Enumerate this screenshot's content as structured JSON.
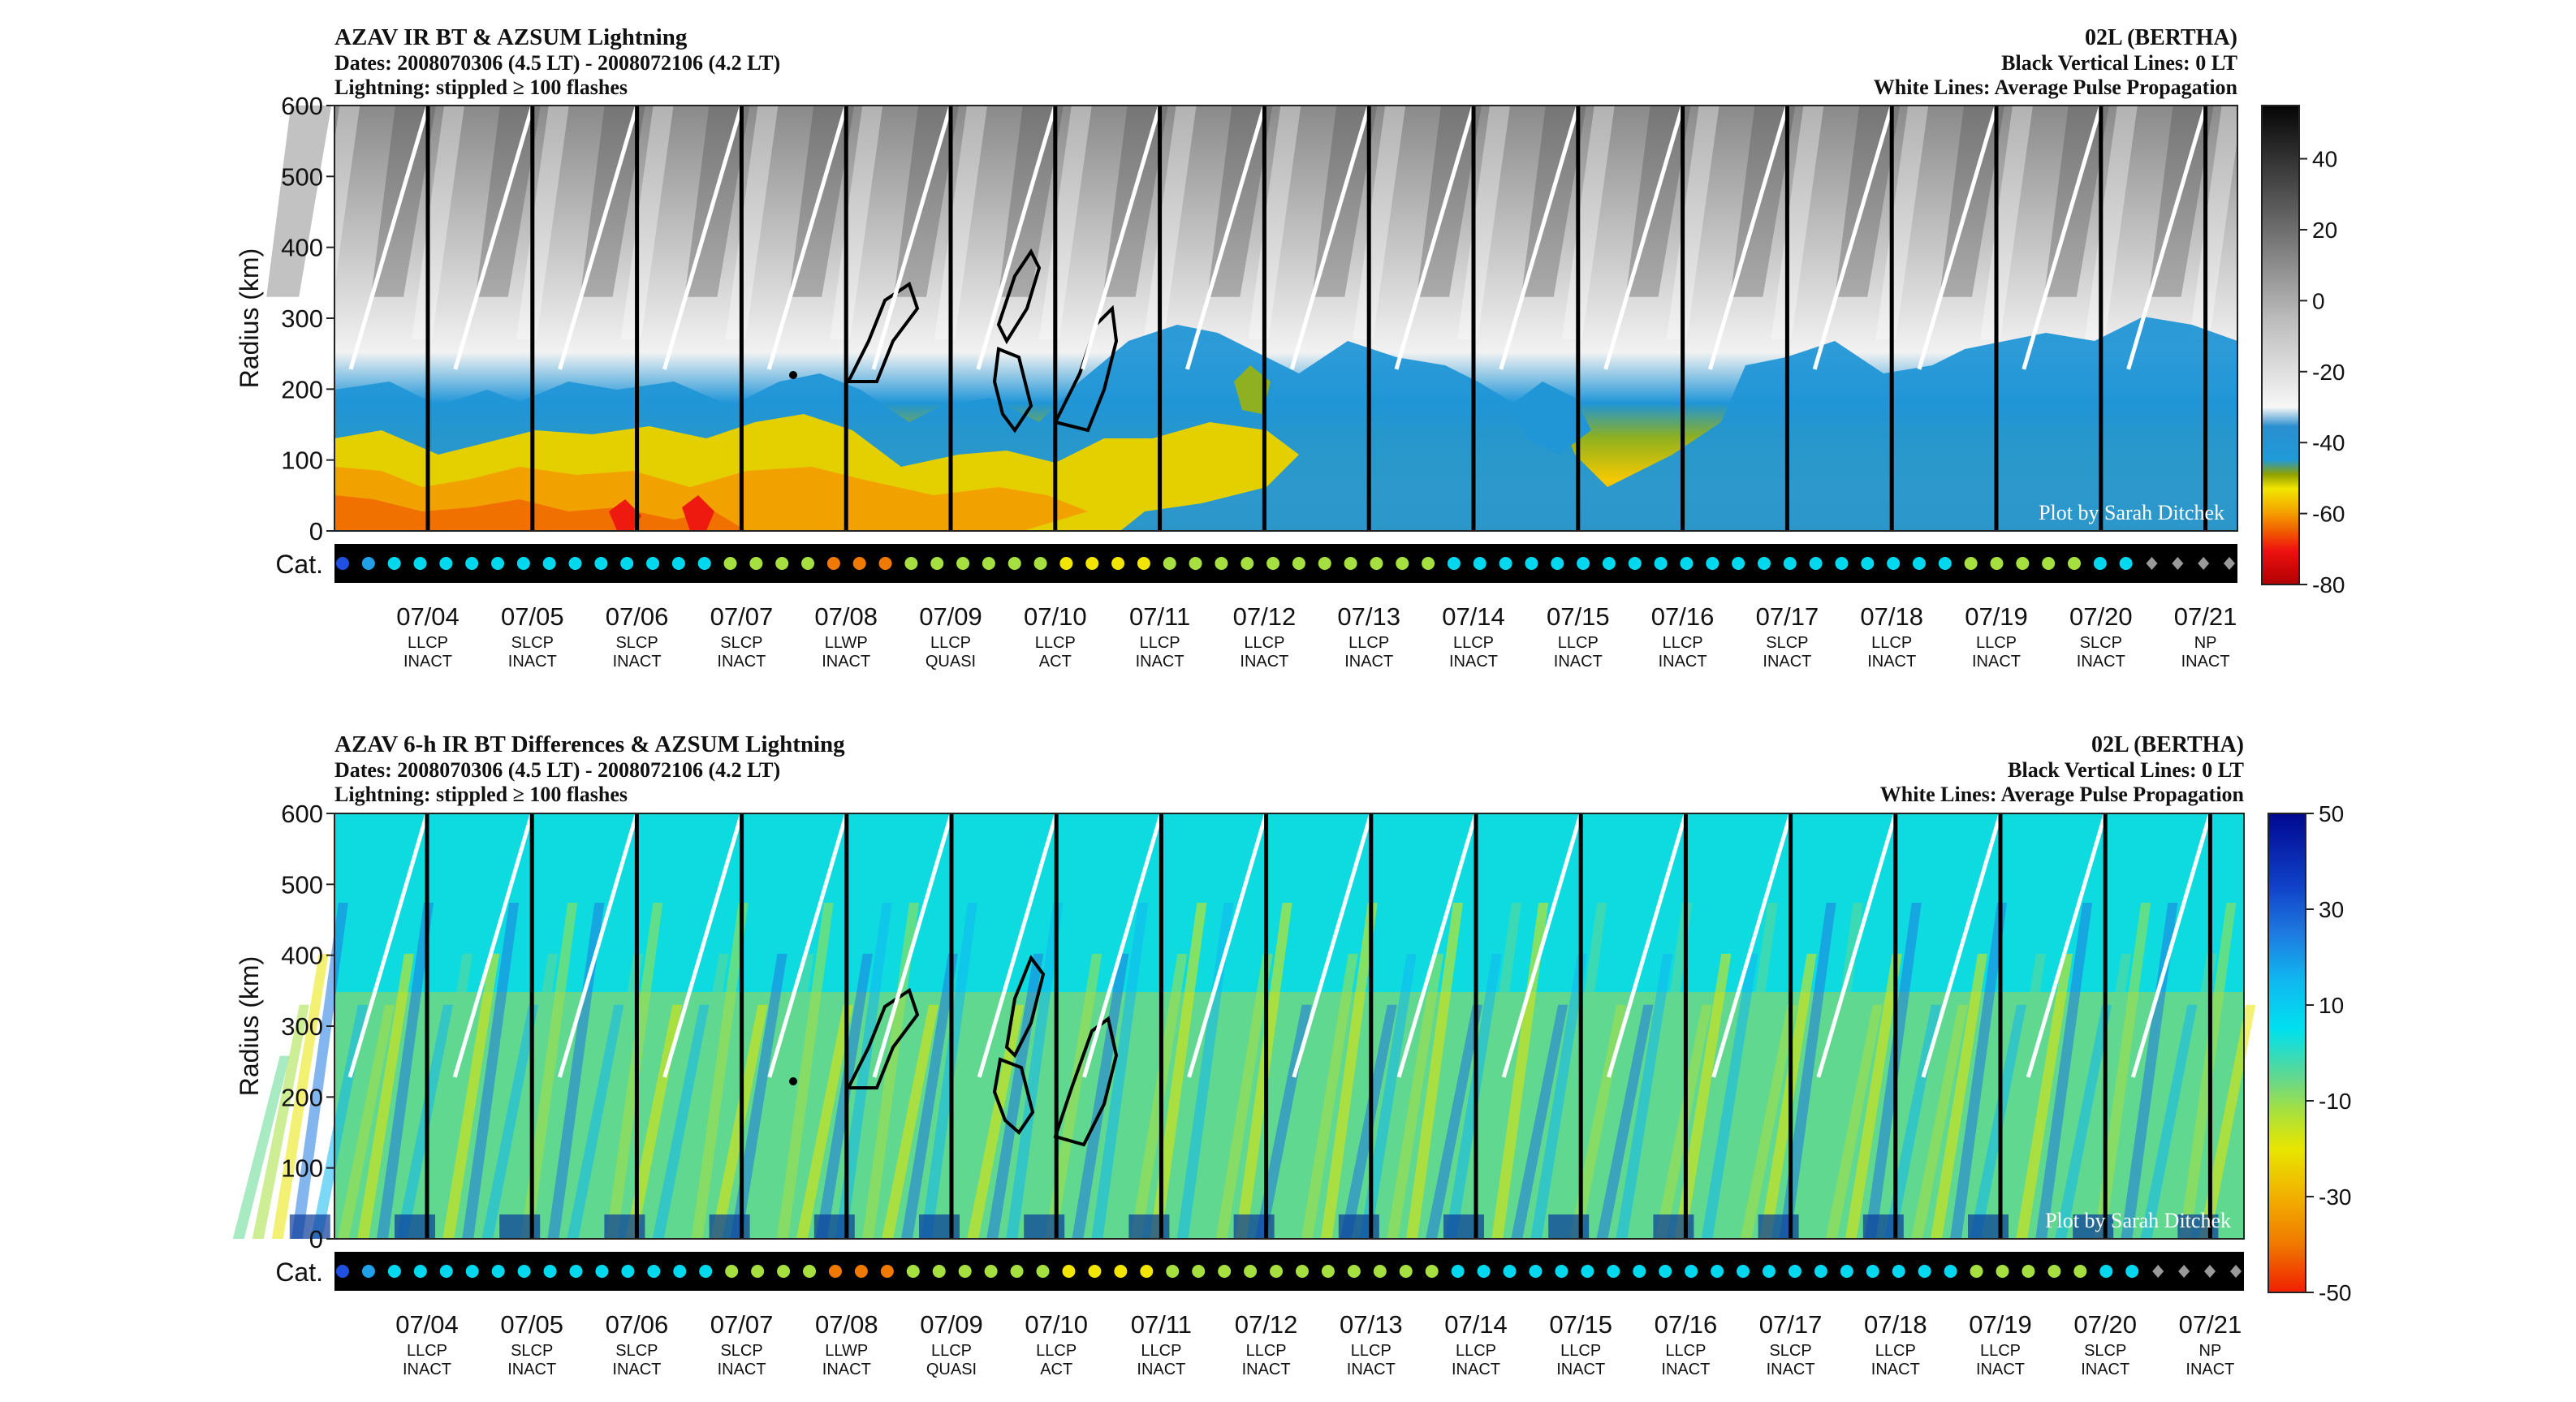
{
  "panels": [
    {
      "title": "AZAV IR BT & AZSUM Lightning",
      "dates": "Dates: 2008070306 (4.5 LT) - 2008072106 (4.2 LT)",
      "lightning": "Lightning: stippled ≥ 100 flashes",
      "storm": "02L (BERTHA)",
      "vlines_note": "Black Vertical Lines: 0 LT",
      "wlines_note": "White Lines: Average Pulse Propagation",
      "credit": "Plot by Sarah Ditchek",
      "ylabel": "Radius (km)",
      "cat_label": "Cat."
    },
    {
      "title": "AZAV 6-h IR BT Differences & AZSUM Lightning",
      "dates": "Dates: 2008070306 (4.5 LT) - 2008072106 (4.2 LT)",
      "lightning": "Lightning: stippled ≥ 100 flashes",
      "storm": "02L (BERTHA)",
      "vlines_note": "Black Vertical Lines: 0 LT",
      "wlines_note": "White Lines: Average Pulse Propagation",
      "credit": "Plot by Sarah Ditchek",
      "ylabel": "Radius (km)",
      "cat_label": "Cat."
    }
  ],
  "chart_data": [
    {
      "type": "heatmap",
      "title": "AZAV IR BT & AZSUM Lightning",
      "ylabel": "Radius (km)",
      "ylim": [
        0,
        600
      ],
      "yticks": [
        "0",
        "100",
        "200",
        "300",
        "400",
        "500",
        "600"
      ],
      "colorbar_ticks": [
        "40",
        "20",
        "0",
        "-20",
        "-40",
        "-60",
        "-80"
      ],
      "colorbar_range": [
        -80,
        55
      ],
      "days": [
        "07/04",
        "07/05",
        "07/06",
        "07/07",
        "07/08",
        "07/09",
        "07/10",
        "07/11",
        "07/12",
        "07/13",
        "07/14",
        "07/15",
        "07/16",
        "07/17",
        "07/18",
        "07/19",
        "07/20",
        "07/21"
      ],
      "category_top": [
        "LLCP",
        "SLCP",
        "SLCP",
        "SLCP",
        "LLWP",
        "LLCP",
        "LLCP",
        "LLCP",
        "LLCP",
        "LLCP",
        "LLCP",
        "LLCP",
        "LLCP",
        "SLCP",
        "LLCP",
        "LLCP",
        "SLCP",
        "NP"
      ],
      "category_bottom": [
        "INACT",
        "INACT",
        "INACT",
        "INACT",
        "INACT",
        "QUASI",
        "ACT",
        "INACT",
        "INACT",
        "INACT",
        "INACT",
        "INACT",
        "INACT",
        "INACT",
        "INACT",
        "INACT",
        "INACT",
        "INACT"
      ]
    },
    {
      "type": "heatmap",
      "title": "AZAV 6-h IR BT Differences & AZSUM Lightning",
      "ylabel": "Radius (km)",
      "ylim": [
        0,
        600
      ],
      "yticks": [
        "0",
        "100",
        "200",
        "300",
        "400",
        "500",
        "600"
      ],
      "colorbar_ticks": [
        "50",
        "30",
        "10",
        "-10",
        "-30",
        "-50"
      ],
      "colorbar_range": [
        -50,
        50
      ],
      "days": [
        "07/04",
        "07/05",
        "07/06",
        "07/07",
        "07/08",
        "07/09",
        "07/10",
        "07/11",
        "07/12",
        "07/13",
        "07/14",
        "07/15",
        "07/16",
        "07/17",
        "07/18",
        "07/19",
        "07/20",
        "07/21"
      ],
      "category_top": [
        "LLCP",
        "SLCP",
        "SLCP",
        "SLCP",
        "LLWP",
        "LLCP",
        "LLCP",
        "LLCP",
        "LLCP",
        "LLCP",
        "LLCP",
        "LLCP",
        "LLCP",
        "SLCP",
        "LLCP",
        "LLCP",
        "SLCP",
        "NP"
      ],
      "category_bottom": [
        "INACT",
        "INACT",
        "INACT",
        "INACT",
        "INACT",
        "QUASI",
        "ACT",
        "INACT",
        "INACT",
        "INACT",
        "INACT",
        "INACT",
        "INACT",
        "INACT",
        "INACT",
        "INACT",
        "INACT",
        "INACT"
      ]
    }
  ]
}
